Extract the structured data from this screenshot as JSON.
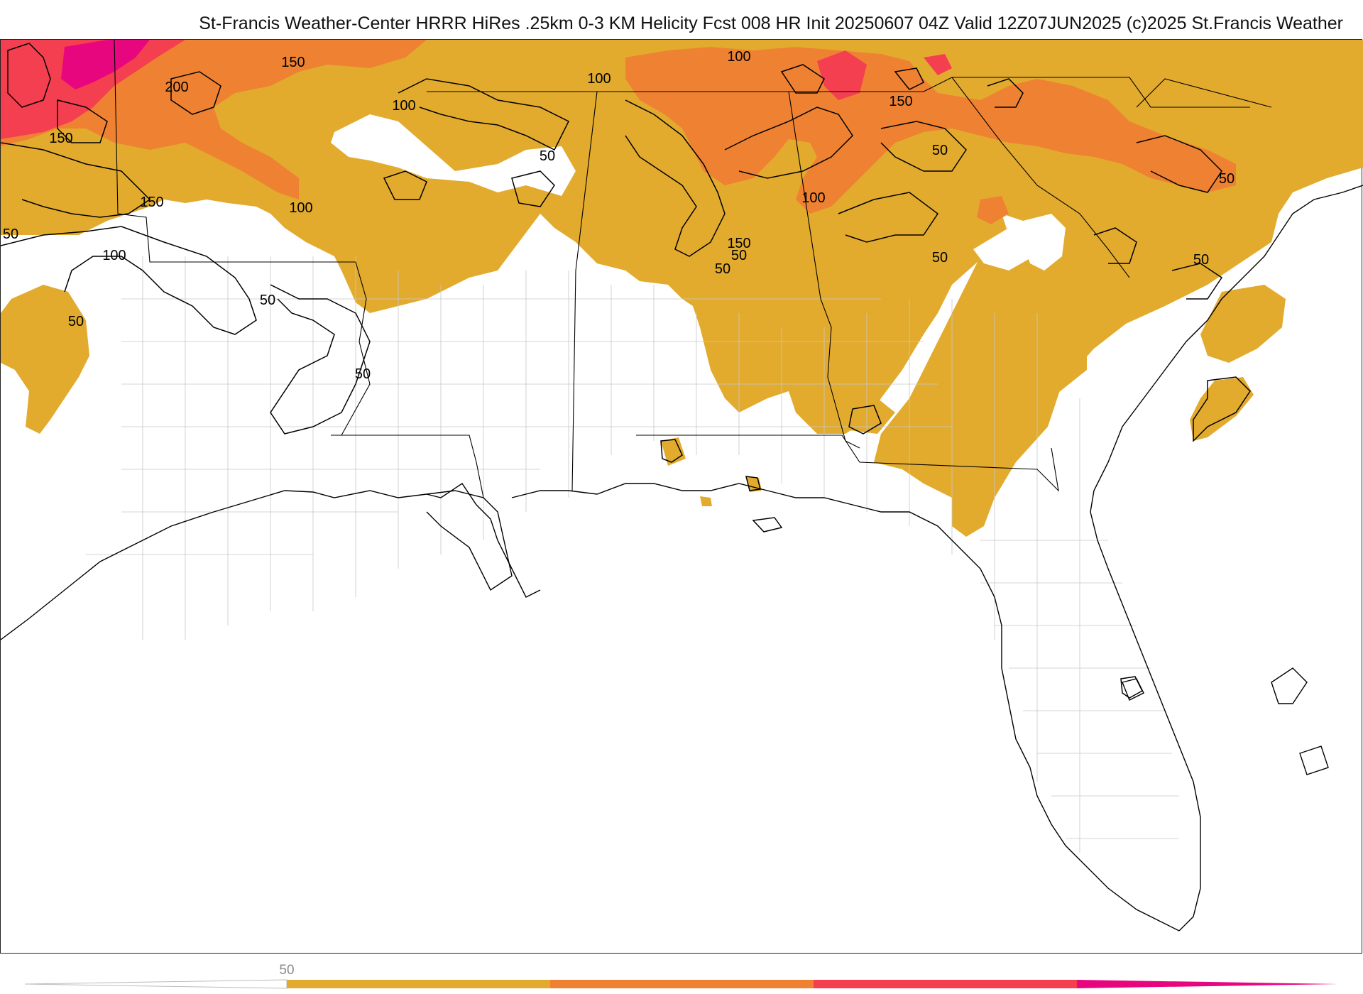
{
  "header": {
    "title": "St-Francis Weather-Center HRRR HiRes .25km 0-3 KM Helicity Fcst 008 HR Init 20250607 04Z  Valid 12Z07JUN2025    (c)2025 St.Francis Weather"
  },
  "map": {
    "contour_labels": [
      "150",
      "200",
      "150",
      "100",
      "150",
      "100",
      "50",
      "100",
      "150",
      "50",
      "100",
      "100",
      "50",
      "50",
      "50",
      "50",
      "50",
      "50",
      "50",
      "50",
      "100",
      "150",
      "50"
    ]
  },
  "legend": {
    "tick_label": "50",
    "colors": [
      "#e2ab2e",
      "#ee8232",
      "#f43f50",
      "#e8067e"
    ]
  },
  "colors": {
    "band_50": "#e2ab2e",
    "band_100": "#ee8232",
    "band_150": "#f43f50",
    "band_200": "#e8067e",
    "coast": "#000000",
    "borders": "#bdbdbd"
  }
}
